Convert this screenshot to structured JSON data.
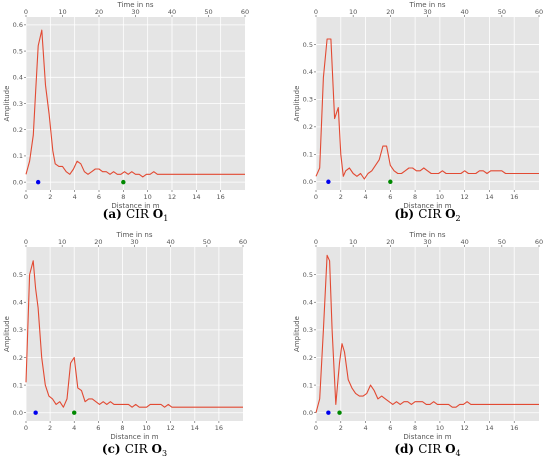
{
  "chart_data": [
    {
      "type": "line",
      "caption_prefix": "(a)",
      "caption_text": "CIR",
      "caption_letter": "O",
      "caption_sub": "1",
      "xlabel": "Distance in m",
      "top_xlabel": "Time in ns",
      "ylabel": "Amplitude",
      "xlim": [
        0,
        18
      ],
      "ylim": [
        -0.03,
        0.63
      ],
      "xticks": [
        0,
        2,
        4,
        6,
        8,
        10,
        12,
        14,
        16
      ],
      "yticks": [
        0.0,
        0.1,
        0.2,
        0.3,
        0.4,
        0.5,
        0.6
      ],
      "top_ticks": [
        0,
        10,
        20,
        30,
        40,
        50,
        60
      ],
      "grid": true,
      "series": [
        {
          "color": "#e24a33",
          "x": [
            0,
            0.3,
            0.6,
            0.8,
            1.0,
            1.3,
            1.6,
            1.9,
            2.2,
            2.4,
            2.7,
            3.0,
            3.3,
            3.6,
            3.9,
            4.2,
            4.5,
            4.8,
            5.1,
            5.4,
            5.7,
            6.0,
            6.3,
            6.6,
            6.9,
            7.2,
            7.5,
            7.8,
            8.1,
            8.4,
            8.7,
            9.0,
            9.3,
            9.6,
            9.9,
            10.2,
            10.5,
            10.8,
            11.1,
            11.4,
            11.7,
            12.0,
            12.3,
            12.6,
            12.9,
            13.2,
            13.5,
            13.8,
            14.1,
            14.4,
            14.7,
            15.0,
            15.3,
            15.6,
            15.9,
            16.2,
            16.5,
            16.8,
            17.1,
            17.4,
            17.7,
            18.0
          ],
          "y": [
            0.03,
            0.08,
            0.18,
            0.35,
            0.52,
            0.58,
            0.37,
            0.26,
            0.12,
            0.07,
            0.06,
            0.06,
            0.04,
            0.03,
            0.05,
            0.08,
            0.07,
            0.04,
            0.03,
            0.04,
            0.05,
            0.05,
            0.04,
            0.04,
            0.03,
            0.04,
            0.03,
            0.03,
            0.04,
            0.03,
            0.04,
            0.03,
            0.03,
            0.02,
            0.03,
            0.03,
            0.04,
            0.03,
            0.03,
            0.03,
            0.03,
            0.03,
            0.03,
            0.03,
            0.03,
            0.03,
            0.03,
            0.03,
            0.03,
            0.03,
            0.03,
            0.03,
            0.03,
            0.03,
            0.03,
            0.03,
            0.03,
            0.03,
            0.03,
            0.03,
            0.03,
            0.03
          ]
        }
      ],
      "markers": [
        {
          "x": 1.0,
          "y": 0.0,
          "color": "#0000ee"
        },
        {
          "x": 8.0,
          "y": 0.0,
          "color": "#008800"
        }
      ]
    },
    {
      "type": "line",
      "caption_prefix": "(b)",
      "caption_text": "CIR",
      "caption_letter": "O",
      "caption_sub": "2",
      "xlabel": "Distance in m",
      "top_xlabel": "Time in ns",
      "ylabel": "Amplitude",
      "xlim": [
        0,
        18
      ],
      "ylim": [
        -0.03,
        0.6
      ],
      "xticks": [
        0,
        2,
        4,
        6,
        8,
        10,
        12,
        14,
        16
      ],
      "yticks": [
        0.0,
        0.1,
        0.2,
        0.3,
        0.4,
        0.5
      ],
      "top_ticks": [
        0,
        10,
        20,
        30,
        40,
        50,
        60
      ],
      "grid": true,
      "series": [
        {
          "color": "#e24a33",
          "x": [
            0,
            0.3,
            0.6,
            0.9,
            1.2,
            1.5,
            1.8,
            2.0,
            2.2,
            2.4,
            2.7,
            3.0,
            3.3,
            3.6,
            3.9,
            4.2,
            4.5,
            4.8,
            5.1,
            5.4,
            5.7,
            6.0,
            6.3,
            6.6,
            6.9,
            7.2,
            7.5,
            7.8,
            8.1,
            8.4,
            8.7,
            9.0,
            9.3,
            9.6,
            9.9,
            10.2,
            10.5,
            10.8,
            11.1,
            11.4,
            11.7,
            12.0,
            12.3,
            12.6,
            12.9,
            13.2,
            13.5,
            13.8,
            14.1,
            14.4,
            14.7,
            15.0,
            15.3,
            15.6,
            15.9,
            16.2,
            16.5,
            16.8,
            17.1,
            17.4,
            17.7,
            18.0
          ],
          "y": [
            0.02,
            0.05,
            0.38,
            0.52,
            0.52,
            0.23,
            0.27,
            0.1,
            0.02,
            0.04,
            0.05,
            0.03,
            0.02,
            0.03,
            0.01,
            0.03,
            0.04,
            0.06,
            0.08,
            0.13,
            0.13,
            0.06,
            0.04,
            0.03,
            0.03,
            0.04,
            0.05,
            0.05,
            0.04,
            0.04,
            0.05,
            0.04,
            0.03,
            0.03,
            0.03,
            0.04,
            0.03,
            0.03,
            0.03,
            0.03,
            0.03,
            0.04,
            0.03,
            0.03,
            0.03,
            0.04,
            0.04,
            0.03,
            0.04,
            0.04,
            0.04,
            0.04,
            0.03,
            0.03,
            0.03,
            0.03,
            0.03,
            0.03,
            0.03,
            0.03,
            0.03,
            0.03
          ]
        }
      ],
      "markers": [
        {
          "x": 1.0,
          "y": 0.0,
          "color": "#0000ee"
        },
        {
          "x": 6.0,
          "y": 0.0,
          "color": "#008800"
        }
      ]
    },
    {
      "type": "line",
      "caption_prefix": "(c)",
      "caption_text": "CIR",
      "caption_letter": "O",
      "caption_sub": "3",
      "xlabel": "Distance in m",
      "top_xlabel": "Time in ns",
      "ylabel": "Amplitude",
      "xlim": [
        0,
        18
      ],
      "ylim": [
        -0.03,
        0.6
      ],
      "xticks": [
        0,
        2,
        4,
        6,
        8,
        10,
        12,
        14,
        16
      ],
      "yticks": [
        0.0,
        0.1,
        0.2,
        0.3,
        0.4,
        0.5
      ],
      "top_ticks": [
        0,
        10,
        20,
        30,
        40,
        50,
        60
      ],
      "grid": true,
      "series": [
        {
          "color": "#e24a33",
          "x": [
            0,
            0.3,
            0.6,
            0.8,
            1.0,
            1.3,
            1.6,
            1.9,
            2.2,
            2.5,
            2.8,
            3.1,
            3.4,
            3.7,
            4.0,
            4.3,
            4.6,
            4.9,
            5.2,
            5.5,
            5.8,
            6.1,
            6.4,
            6.7,
            7.0,
            7.3,
            7.6,
            7.9,
            8.2,
            8.5,
            8.8,
            9.1,
            9.4,
            9.7,
            10.0,
            10.3,
            10.6,
            10.9,
            11.2,
            11.5,
            11.8,
            12.1,
            12.4,
            12.7,
            13.0,
            13.3,
            13.6,
            13.9,
            14.2,
            14.5,
            14.8,
            15.1,
            15.4,
            15.7,
            16.0,
            16.3,
            16.6,
            16.9,
            17.2,
            17.5,
            17.8,
            18.0
          ],
          "y": [
            0.11,
            0.5,
            0.55,
            0.45,
            0.38,
            0.2,
            0.1,
            0.06,
            0.05,
            0.03,
            0.04,
            0.02,
            0.05,
            0.18,
            0.2,
            0.09,
            0.08,
            0.04,
            0.05,
            0.05,
            0.04,
            0.03,
            0.04,
            0.03,
            0.04,
            0.03,
            0.03,
            0.03,
            0.03,
            0.03,
            0.02,
            0.03,
            0.02,
            0.02,
            0.02,
            0.03,
            0.03,
            0.03,
            0.03,
            0.02,
            0.03,
            0.02,
            0.02,
            0.02,
            0.02,
            0.02,
            0.02,
            0.02,
            0.02,
            0.02,
            0.02,
            0.02,
            0.02,
            0.02,
            0.02,
            0.02,
            0.02,
            0.02,
            0.02,
            0.02,
            0.02,
            0.02
          ]
        }
      ],
      "markers": [
        {
          "x": 0.8,
          "y": 0.0,
          "color": "#0000ee"
        },
        {
          "x": 4.0,
          "y": 0.0,
          "color": "#008800"
        }
      ]
    },
    {
      "type": "line",
      "caption_prefix": "(d)",
      "caption_text": "CIR",
      "caption_letter": "O",
      "caption_sub": "4",
      "xlabel": "Distance in m",
      "top_xlabel": "Time in ns",
      "ylabel": "Amplitude",
      "xlim": [
        0,
        18
      ],
      "ylim": [
        -0.03,
        0.6
      ],
      "xticks": [
        0,
        2,
        4,
        6,
        8,
        10,
        12,
        14,
        16
      ],
      "yticks": [
        0.0,
        0.1,
        0.2,
        0.3,
        0.4,
        0.5
      ],
      "top_ticks": [
        0,
        10,
        20,
        30,
        40,
        50,
        60
      ],
      "grid": true,
      "series": [
        {
          "color": "#e24a33",
          "x": [
            0,
            0.3,
            0.6,
            0.9,
            1.1,
            1.3,
            1.6,
            1.9,
            2.1,
            2.3,
            2.6,
            2.9,
            3.2,
            3.5,
            3.8,
            4.1,
            4.4,
            4.7,
            5.0,
            5.3,
            5.6,
            5.9,
            6.2,
            6.5,
            6.8,
            7.1,
            7.4,
            7.7,
            8.0,
            8.3,
            8.6,
            8.9,
            9.2,
            9.5,
            9.8,
            10.1,
            10.4,
            10.7,
            11.0,
            11.3,
            11.6,
            11.9,
            12.2,
            12.5,
            12.8,
            13.1,
            13.4,
            13.7,
            14.0,
            14.3,
            14.6,
            14.9,
            15.2,
            15.5,
            15.8,
            16.1,
            16.4,
            16.7,
            17.0,
            17.3,
            17.6,
            18.0
          ],
          "y": [
            0.0,
            0.05,
            0.3,
            0.57,
            0.55,
            0.3,
            0.03,
            0.18,
            0.25,
            0.22,
            0.12,
            0.09,
            0.07,
            0.06,
            0.06,
            0.07,
            0.1,
            0.08,
            0.05,
            0.06,
            0.05,
            0.04,
            0.03,
            0.04,
            0.03,
            0.04,
            0.04,
            0.03,
            0.04,
            0.04,
            0.04,
            0.03,
            0.03,
            0.04,
            0.03,
            0.03,
            0.03,
            0.03,
            0.02,
            0.02,
            0.03,
            0.03,
            0.04,
            0.03,
            0.03,
            0.03,
            0.03,
            0.03,
            0.03,
            0.03,
            0.03,
            0.03,
            0.03,
            0.03,
            0.03,
            0.03,
            0.03,
            0.03,
            0.03,
            0.03,
            0.03,
            0.03
          ]
        }
      ],
      "markers": [
        {
          "x": 1.0,
          "y": 0.0,
          "color": "#0000ee"
        },
        {
          "x": 1.9,
          "y": 0.0,
          "color": "#008800"
        }
      ]
    }
  ]
}
